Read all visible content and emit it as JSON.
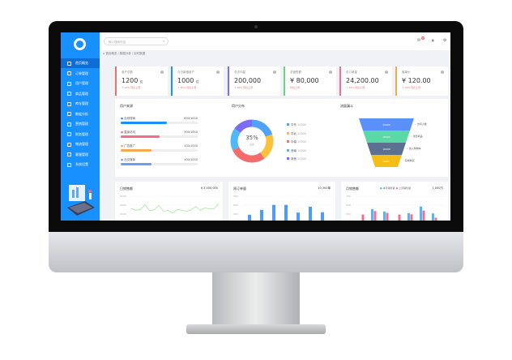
{
  "sidebar": {
    "items": [
      {
        "label": "首页概览"
      },
      {
        "label": "订单管理"
      },
      {
        "label": "用户管理"
      },
      {
        "label": "商品管理"
      },
      {
        "label": "库存管理"
      },
      {
        "label": "数据分析"
      },
      {
        "label": "营销管理"
      },
      {
        "label": "财务管理"
      },
      {
        "label": "物流管理"
      },
      {
        "label": "客服管理"
      },
      {
        "label": "系统设置"
      }
    ]
  },
  "header": {
    "search_placeholder": "输入搜索内容",
    "badge": "8"
  },
  "breadcrumb": "首页概览 / 数据分析 / 实时数据",
  "cards": [
    {
      "title": "用户总数",
      "value": "1200",
      "unit": "位",
      "sub": "↑ 10% 同比上周",
      "color": "#f56c6c"
    },
    {
      "title": "今日新增用户",
      "value": "1000",
      "unit": "位",
      "sub": "↑ 10% 同比上周",
      "color": "#1890ff"
    },
    {
      "title": "总访问量",
      "value": "200,000",
      "unit": "",
      "sub": "↑ 10% 同比上周",
      "color": "#7c6cf5"
    },
    {
      "title": "总销售额",
      "value": "¥ 80,000",
      "unit": "",
      "sub": "同比上周",
      "color": "#67d67a"
    },
    {
      "title": "总订单量",
      "value": "24,200.00",
      "unit": "",
      "sub": "↓ 22% 同比上周",
      "color": "#f56c8c"
    },
    {
      "title": "客单价",
      "value": "¥ 120.00",
      "unit": "",
      "sub": "↑ 10% 同比上周",
      "color": "#f5a84c"
    }
  ],
  "user_source": {
    "title": "用户来源",
    "items": [
      {
        "label": "自然搜索",
        "count": "600/1000",
        "pct": 60,
        "color": "#1890ff"
      },
      {
        "label": "直接访问",
        "count": "500/1000",
        "pct": 50,
        "color": "#f56c8c"
      },
      {
        "label": "广告推广",
        "count": "400/1000",
        "pct": 40,
        "color": "#f5a84c"
      },
      {
        "label": "社交媒体",
        "count": "400/1000",
        "pct": 40,
        "color": "#6c9cf5"
      }
    ]
  },
  "user_dist": {
    "title": "用户分布",
    "center_value": "35%",
    "center_label": "占比",
    "items": [
      {
        "label": "华东",
        "value": "10000",
        "pct": 20,
        "color": "#4fa3f7"
      },
      {
        "label": "华北",
        "value": "10000",
        "pct": 20,
        "color": "#fbc13b"
      },
      {
        "label": "华南",
        "value": "10000",
        "pct": 28,
        "color": "#f56c6c"
      },
      {
        "label": "西南",
        "value": "10000",
        "pct": 17,
        "color": "#4fb8f7"
      },
      {
        "label": "其他",
        "value": "10000",
        "pct": 15,
        "color": "#7c6cf5"
      }
    ]
  },
  "funnel": {
    "title": "流量漏斗",
    "stages": [
      {
        "value": "20000",
        "label": "访问人数",
        "color": "#5b8ff9"
      },
      {
        "value": "15000",
        "label": "浏览商品",
        "color": "#5ad8a6"
      },
      {
        "value": "10000",
        "label": "加入购物车",
        "color": "#5d7092"
      },
      {
        "value": "5000",
        "label": "完成购买",
        "color": "#f6bd16"
      }
    ]
  },
  "daily_sales": {
    "title": "日销售额",
    "total": "¥ 3,000,000",
    "yticks": [
      "6000",
      "4000",
      "2000"
    ],
    "values": [
      30,
      26,
      28,
      38,
      25,
      27,
      36,
      24,
      26,
      20,
      28,
      26,
      24,
      27,
      34,
      26,
      31,
      29,
      29,
      40
    ]
  },
  "weekly_orders": {
    "title": "周订单量",
    "total": "10,300单",
    "yticks": [
      "900",
      "600",
      "300"
    ],
    "values": [
      290,
      540,
      790,
      790,
      400,
      700,
      420
    ]
  },
  "month_compare": {
    "title": "月销售额",
    "total": "1,000万",
    "legend": [
      "本月销售额",
      "上月销售额"
    ],
    "yticks": [
      "750",
      "500",
      "250"
    ],
    "a": [
      0,
      480,
      380,
      0,
      310,
      590,
      300
    ],
    "b": [
      250,
      400,
      320,
      250,
      260,
      420,
      120
    ]
  }
}
